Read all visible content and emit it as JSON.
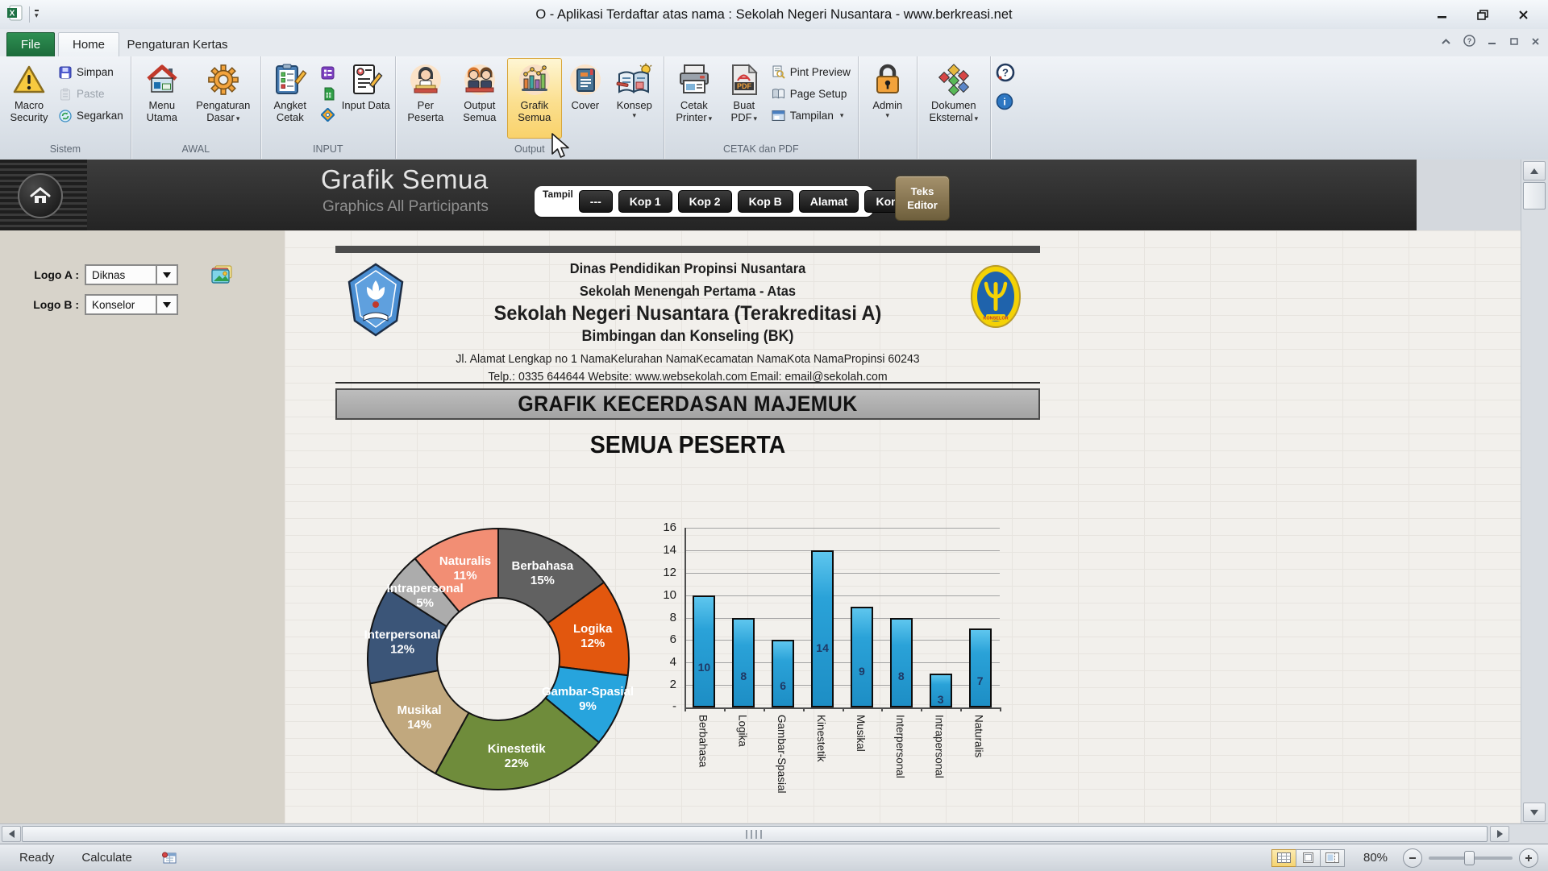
{
  "window": {
    "title": "O  -  Aplikasi Terdaftar atas nama :  Sekolah Negeri Nusantara  -  www.berkreasi.net"
  },
  "tabs": {
    "file": "File",
    "home": "Home",
    "paper": "Pengaturan Kertas"
  },
  "ribbon": {
    "sistem": {
      "label": "Sistem",
      "macro_security": "Macro Security",
      "simpan": "Simpan",
      "paste": "Paste",
      "segarkan": "Segarkan"
    },
    "awal": {
      "label": "AWAL",
      "menu_utama": "Menu Utama",
      "pengaturan_dasar": "Pengaturan Dasar"
    },
    "input": {
      "label": "INPUT",
      "angket_cetak": "Angket Cetak",
      "input_data": "Input Data"
    },
    "output": {
      "label": "Output",
      "per_peserta": "Per Peserta",
      "output_semua": "Output Semua",
      "grafik_semua": "Grafik Semua",
      "cover": "Cover",
      "konsep": "Konsep"
    },
    "cetak": {
      "label": "CETAK dan PDF",
      "cetak_printer": "Cetak Printer",
      "buat_pdf": "Buat PDF",
      "pint_preview": "Pint Preview",
      "page_setup": "Page Setup",
      "tampilan": "Tampilan"
    },
    "admin": "Admin",
    "dokumen_eksternal": "Dokumen Eksternal"
  },
  "header": {
    "title": "Grafik Semua",
    "subtitle": "Graphics All Participants",
    "tampil": "Tampil",
    "buttons": [
      "---",
      "Kop 1",
      "Kop 2",
      "Kop B",
      "Alamat",
      "Kontak"
    ],
    "teks_editor": "Teks Editor"
  },
  "sidebar": {
    "logo_a_label": "Logo A :",
    "logo_a_value": "Diknas",
    "logo_b_label": "Logo B :",
    "logo_b_value": "Konselor"
  },
  "document": {
    "line1": "Dinas Pendidikan Propinsi Nusantara",
    "line2": "Sekolah Menengah Pertama - Atas",
    "line3": "Sekolah Negeri Nusantara (Terakreditasi A)",
    "line4": "Bimbingan dan Konseling (BK)",
    "address": "Jl. Alamat Lengkap no 1 NamaKelurahan NamaKecamatan NamaKota NamaPropinsi 60243",
    "contact": "Telp.: 0335 644644  Website: www.websekolah.com  Email: email@sekolah.com",
    "section_title": "GRAFIK KECERDASAN MAJEMUK",
    "subtitle": "SEMUA PESERTA"
  },
  "chart_data": [
    {
      "type": "pie",
      "subtype": "donut",
      "labels": [
        "Berbahasa",
        "Logika",
        "Gambar-Spasial",
        "Kinestetik",
        "Musikal",
        "Interpersonal",
        "Intrapersonal",
        "Naturalis"
      ],
      "values": [
        15,
        12,
        9,
        22,
        14,
        12,
        5,
        11
      ],
      "unit": "%",
      "colors": [
        "#616161",
        "#E2570E",
        "#27A4DD",
        "#6F8C3B",
        "#C1A87E",
        "#3B5578",
        "#ACACAC",
        "#F28E74"
      ],
      "legend": "none",
      "labels_inside": true
    },
    {
      "type": "bar",
      "categories": [
        "Berbahasa",
        "Logika",
        "Gambar-Spasial",
        "Kinestetik",
        "Musikal",
        "Interpersonal",
        "Intrapersonal",
        "Naturalis"
      ],
      "values": [
        10,
        8,
        6,
        14,
        9,
        8,
        3,
        7
      ],
      "ylim": [
        0,
        16
      ],
      "ytick_step": 2,
      "zero_label": "-",
      "bar_color": "#2AA2D8",
      "bar_border": "#0D0D0D",
      "value_label_color": "#1F3864",
      "grid": true,
      "legend": "none"
    }
  ],
  "statusbar": {
    "ready": "Ready",
    "calculate": "Calculate",
    "zoom_value": "80%"
  },
  "icons": {
    "caret": "▾",
    "help": "?",
    "info": "i",
    "pdf": "PDF",
    "excel": "X",
    "konselor": "KONSELOR"
  }
}
